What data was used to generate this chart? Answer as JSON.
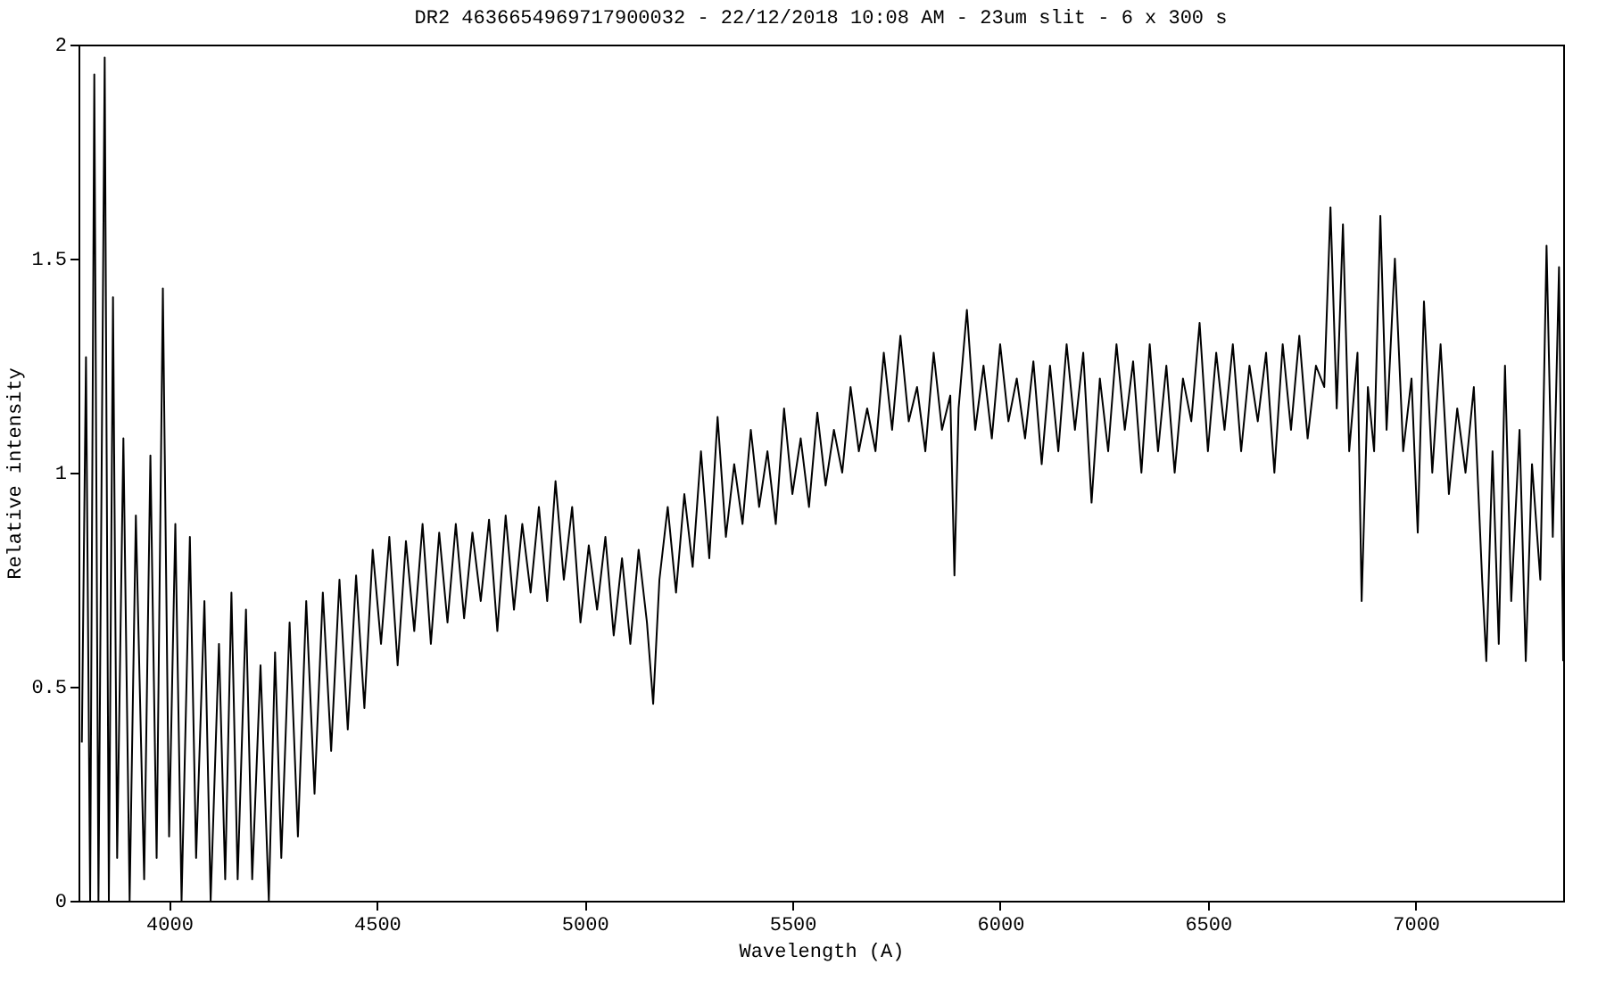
{
  "chart_data": {
    "type": "line",
    "title": "DR2 4636654969717900032 - 22/12/2018 10:08 AM - 23um slit - 6 x 300 s",
    "xlabel": "Wavelength (A)",
    "ylabel": "Relative intensity",
    "xlim": [
      3782,
      7355
    ],
    "xticks": [
      4000,
      4500,
      5000,
      5500,
      6000,
      6500,
      7000
    ],
    "ylim": [
      0,
      2
    ],
    "yticks": [
      0,
      0.5,
      1,
      1.5,
      2
    ],
    "grid": false,
    "marker": "none",
    "line_style": "solid",
    "series": [
      {
        "color": "#000000",
        "x": [
          3790,
          3800,
          3810,
          3820,
          3830,
          3845,
          3855,
          3865,
          3875,
          3890,
          3905,
          3920,
          3940,
          3955,
          3970,
          3985,
          4000,
          4015,
          4030,
          4050,
          4065,
          4085,
          4100,
          4120,
          4135,
          4150,
          4165,
          4185,
          4200,
          4220,
          4240,
          4255,
          4270,
          4290,
          4310,
          4330,
          4350,
          4370,
          4390,
          4410,
          4430,
          4450,
          4470,
          4490,
          4510,
          4530,
          4550,
          4570,
          4590,
          4610,
          4630,
          4650,
          4670,
          4690,
          4710,
          4730,
          4750,
          4770,
          4790,
          4810,
          4830,
          4850,
          4870,
          4890,
          4910,
          4930,
          4950,
          4970,
          4990,
          5010,
          5030,
          5050,
          5070,
          5090,
          5110,
          5130,
          5150,
          5165,
          5180,
          5200,
          5220,
          5240,
          5260,
          5280,
          5300,
          5320,
          5340,
          5360,
          5380,
          5400,
          5420,
          5440,
          5460,
          5480,
          5500,
          5520,
          5540,
          5560,
          5580,
          5600,
          5620,
          5640,
          5660,
          5680,
          5700,
          5720,
          5740,
          5760,
          5780,
          5800,
          5820,
          5840,
          5860,
          5880,
          5890,
          5900,
          5920,
          5940,
          5960,
          5980,
          6000,
          6020,
          6040,
          6060,
          6080,
          6100,
          6120,
          6140,
          6160,
          6180,
          6200,
          6220,
          6240,
          6260,
          6280,
          6300,
          6320,
          6340,
          6360,
          6380,
          6400,
          6420,
          6440,
          6460,
          6480,
          6500,
          6520,
          6540,
          6560,
          6580,
          6600,
          6620,
          6640,
          6660,
          6680,
          6700,
          6720,
          6740,
          6760,
          6780,
          6795,
          6810,
          6825,
          6840,
          6860,
          6870,
          6885,
          6900,
          6915,
          6930,
          6950,
          6970,
          6990,
          7005,
          7020,
          7040,
          7060,
          7080,
          7100,
          7120,
          7140,
          7160,
          7170,
          7185,
          7200,
          7215,
          7230,
          7250,
          7265,
          7280,
          7300,
          7315,
          7330,
          7345,
          7355
        ],
        "values": [
          0.37,
          1.27,
          0.0,
          1.93,
          0.0,
          1.97,
          0.0,
          1.41,
          0.1,
          1.08,
          0.0,
          0.9,
          0.05,
          1.04,
          0.1,
          1.43,
          0.15,
          0.88,
          0.0,
          0.85,
          0.1,
          0.7,
          0.0,
          0.6,
          0.05,
          0.72,
          0.05,
          0.68,
          0.05,
          0.55,
          0.0,
          0.58,
          0.1,
          0.65,
          0.15,
          0.7,
          0.25,
          0.72,
          0.35,
          0.75,
          0.4,
          0.76,
          0.45,
          0.82,
          0.6,
          0.85,
          0.55,
          0.84,
          0.63,
          0.88,
          0.6,
          0.86,
          0.65,
          0.88,
          0.66,
          0.86,
          0.7,
          0.89,
          0.63,
          0.9,
          0.68,
          0.88,
          0.72,
          0.92,
          0.7,
          0.98,
          0.75,
          0.92,
          0.65,
          0.83,
          0.68,
          0.85,
          0.62,
          0.8,
          0.6,
          0.82,
          0.65,
          0.46,
          0.75,
          0.92,
          0.72,
          0.95,
          0.78,
          1.05,
          0.8,
          1.13,
          0.85,
          1.02,
          0.88,
          1.1,
          0.92,
          1.05,
          0.88,
          1.15,
          0.95,
          1.08,
          0.92,
          1.14,
          0.97,
          1.1,
          1.0,
          1.2,
          1.05,
          1.15,
          1.05,
          1.28,
          1.1,
          1.32,
          1.12,
          1.2,
          1.05,
          1.28,
          1.1,
          1.18,
          0.76,
          1.15,
          1.38,
          1.1,
          1.25,
          1.08,
          1.3,
          1.12,
          1.22,
          1.08,
          1.26,
          1.02,
          1.25,
          1.05,
          1.3,
          1.1,
          1.28,
          0.93,
          1.22,
          1.05,
          1.3,
          1.1,
          1.26,
          1.0,
          1.3,
          1.05,
          1.25,
          1.0,
          1.22,
          1.12,
          1.35,
          1.05,
          1.28,
          1.1,
          1.3,
          1.05,
          1.25,
          1.12,
          1.28,
          1.0,
          1.3,
          1.1,
          1.32,
          1.08,
          1.25,
          1.2,
          1.62,
          1.15,
          1.58,
          1.05,
          1.28,
          0.7,
          1.2,
          1.05,
          1.6,
          1.1,
          1.5,
          1.05,
          1.22,
          0.86,
          1.4,
          1.0,
          1.3,
          0.95,
          1.15,
          1.0,
          1.2,
          0.75,
          0.56,
          1.05,
          0.6,
          1.25,
          0.7,
          1.1,
          0.56,
          1.02,
          0.75,
          1.53,
          0.85,
          1.48,
          0.56
        ]
      }
    ]
  }
}
